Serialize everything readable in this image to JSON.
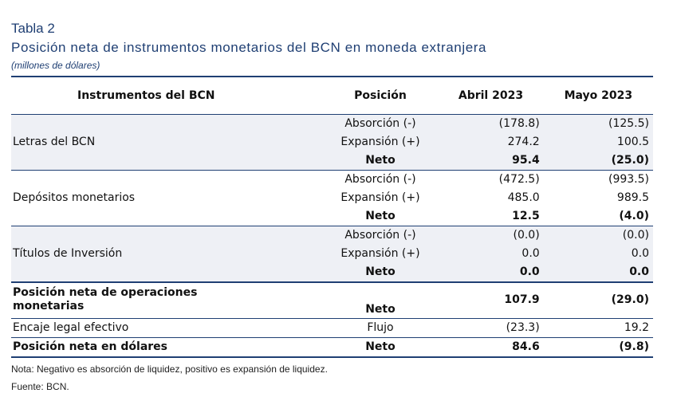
{
  "header": {
    "tabla": "Tabla 2",
    "titulo": "Posición neta de instrumentos monetarios del BCN en moneda extranjera",
    "unidad": "(millones de dólares)"
  },
  "columns": [
    "Instrumentos del BCN",
    "Posición",
    "Abril 2023",
    "Mayo 2023"
  ],
  "groups": [
    {
      "label": "Letras del BCN",
      "rows": [
        {
          "pos": "Absorción (-)",
          "abril": "(178.8)",
          "mayo": "(125.5)"
        },
        {
          "pos": "Expansión (+)",
          "abril": "274.2",
          "mayo": "100.5"
        },
        {
          "pos": "Neto",
          "abril": "95.4",
          "mayo": "(25.0)"
        }
      ]
    },
    {
      "label": "Depósitos monetarios",
      "rows": [
        {
          "pos": "Absorción (-)",
          "abril": "(472.5)",
          "mayo": "(993.5)"
        },
        {
          "pos": "Expansión (+)",
          "abril": "485.0",
          "mayo": "989.5"
        },
        {
          "pos": "Neto",
          "abril": "12.5",
          "mayo": "(4.0)"
        }
      ]
    },
    {
      "label": "Títulos de Inversión",
      "rows": [
        {
          "pos": "Absorción (-)",
          "abril": "(0.0)",
          "mayo": "(0.0)"
        },
        {
          "pos": "Expansión (+)",
          "abril": "0.0",
          "mayo": "0.0"
        },
        {
          "pos": "Neto",
          "abril": "0.0",
          "mayo": "0.0"
        }
      ]
    }
  ],
  "summary": [
    {
      "label": "Posición neta de operaciones monetarias",
      "pos": "Neto",
      "abril": "107.9",
      "mayo": "(29.0)"
    },
    {
      "label": "Encaje legal efectivo",
      "pos": "Flujo",
      "abril": "(23.3)",
      "mayo": "19.2"
    },
    {
      "label": "Posición neta en dólares",
      "pos": "Neto",
      "abril": "84.6",
      "mayo": "(9.8)"
    }
  ],
  "nota": "Nota: Negativo es absorción de liquidez, positivo es expansión de liquidez.",
  "fuente": "Fuente: BCN."
}
